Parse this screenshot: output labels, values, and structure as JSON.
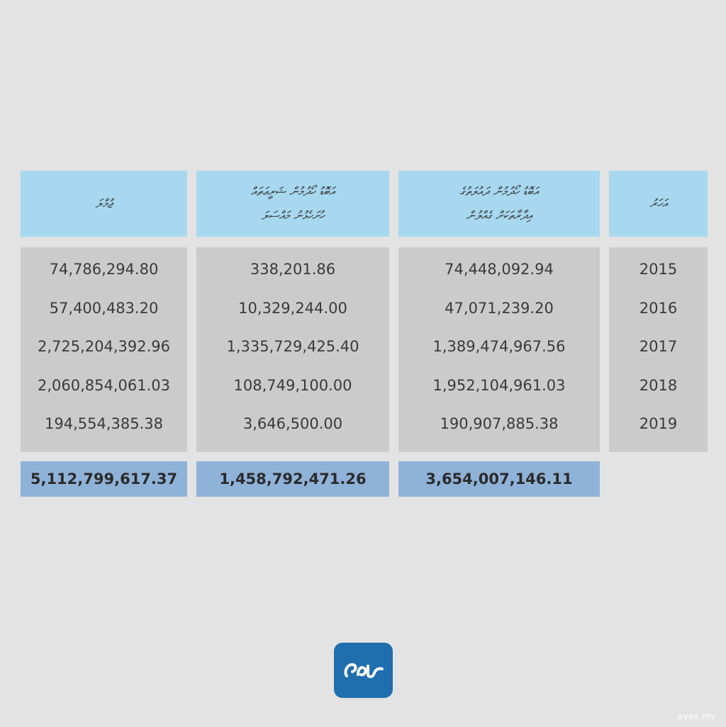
{
  "table": {
    "headers": {
      "total": "ޖުމްލަ",
      "col2_line1": "އަބޮޑު ހޯދުމުން ޝަރީޢަތައް",
      "col2_line2": "ހުށަހެޅުނު މައްސަލަ",
      "col3_line1": "އަބޮޑު ހޯދުމުން ދައުލަތުގެ",
      "col3_line2": "އިދާރާތަކަށް ގެއްލުން",
      "year": "އަހަރު"
    },
    "years": [
      "2015",
      "2016",
      "2017",
      "2018",
      "2019"
    ],
    "totals_column": [
      "74,786,294.80",
      "57,400,483.20",
      "2,725,204,392.96",
      "2,060,854,061.03",
      "194,554,385.38"
    ],
    "court_column": [
      "338,201.86",
      "10,329,244.00",
      "1,335,729,425.40",
      "108,749,100.00",
      "3,646,500.00"
    ],
    "agencies_column": [
      "74,448,092.94",
      "47,071,239.20",
      "1,389,474,967.56",
      "1,952,104,961.03",
      "190,907,885.38"
    ],
    "sum_totals": "5,112,799,617.37",
    "sum_court": "1,458,792,471.26",
    "sum_agencies": "3,654,007,146.11"
  },
  "logo": {
    "icon": "avas-logo-icon",
    "color": "#1f6fae"
  },
  "watermark": "avas.mv",
  "colors": {
    "background": "#e3e3e3",
    "header": "#a7d8ef",
    "body": "#cbcbcb",
    "total": "#8fb2d8"
  }
}
